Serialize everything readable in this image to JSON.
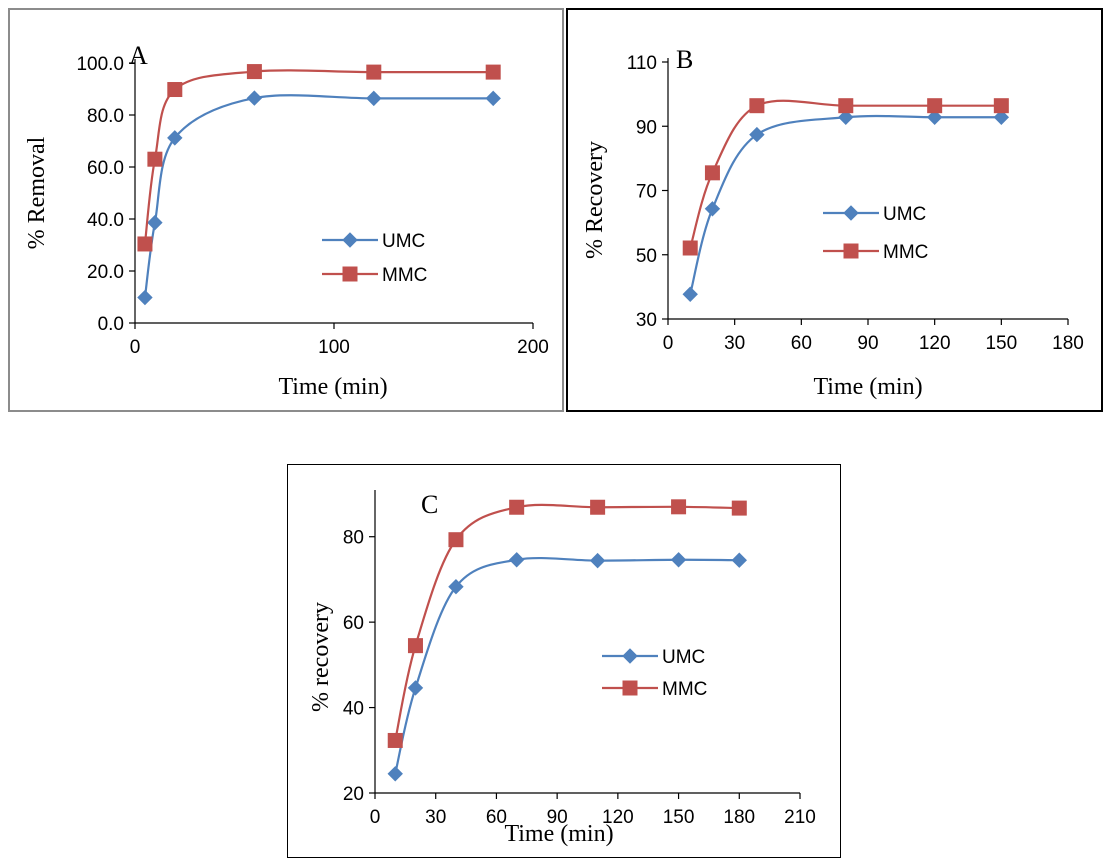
{
  "chart_data": [
    {
      "type": "line",
      "panel_label": "A",
      "xlabel": "Time (min)",
      "ylabel": "% Removal",
      "xlim": [
        0,
        200
      ],
      "ylim": [
        0,
        100
      ],
      "x_ticks": [
        0,
        100,
        200
      ],
      "y_ticks": [
        "0.0",
        "20.0",
        "40.0",
        "60.0",
        "80.0",
        "100.0"
      ],
      "x_tick_labels": [
        "0",
        "100",
        "200"
      ],
      "grid": false,
      "legend_position": "center-right",
      "series": [
        {
          "name": "UMC",
          "color": "#4f81bd",
          "marker": "diamond",
          "x": [
            5,
            10,
            20,
            60,
            120,
            180
          ],
          "y": [
            9.8,
            38.6,
            71.2,
            86.5,
            86.4,
            86.4
          ]
        },
        {
          "name": "MMC",
          "color": "#c0504d",
          "marker": "square",
          "x": [
            5,
            10,
            20,
            60,
            120,
            180
          ],
          "y": [
            30.4,
            63.0,
            89.8,
            96.7,
            96.5,
            96.5
          ]
        }
      ]
    },
    {
      "type": "line",
      "panel_label": "B",
      "xlabel": "Time (min)",
      "ylabel": "% Recovery",
      "xlim": [
        0,
        180
      ],
      "ylim": [
        30,
        110
      ],
      "x_ticks": [
        0,
        30,
        60,
        90,
        120,
        150,
        180
      ],
      "y_ticks": [
        "30",
        "50",
        "70",
        "90",
        "110"
      ],
      "x_tick_labels": [
        "0",
        "30",
        "60",
        "90",
        "120",
        "150",
        "180"
      ],
      "grid": false,
      "legend_position": "center-right",
      "series": [
        {
          "name": "UMC",
          "color": "#4f81bd",
          "marker": "diamond",
          "x": [
            10,
            20,
            40,
            80,
            120,
            150
          ],
          "y": [
            37.7,
            64.3,
            87.4,
            92.8,
            92.8,
            92.8
          ]
        },
        {
          "name": "MMC",
          "color": "#c0504d",
          "marker": "square",
          "x": [
            10,
            20,
            40,
            80,
            120,
            150
          ],
          "y": [
            52.1,
            75.5,
            96.4,
            96.4,
            96.4,
            96.4
          ]
        }
      ]
    },
    {
      "type": "line",
      "panel_label": "C",
      "xlabel": "Time (min)",
      "ylabel": "% recovery",
      "xlim": [
        0,
        210
      ],
      "ylim": [
        20,
        90
      ],
      "x_ticks": [
        0,
        30,
        60,
        90,
        120,
        150,
        180,
        210
      ],
      "y_ticks": [
        "20",
        "40",
        "60",
        "80"
      ],
      "x_tick_labels": [
        "0",
        "30",
        "60",
        "90",
        "120",
        "150",
        "180",
        "210"
      ],
      "grid": false,
      "legend_position": "center-right",
      "series": [
        {
          "name": "UMC",
          "color": "#4f81bd",
          "marker": "diamond",
          "x": [
            10,
            20,
            40,
            70,
            110,
            150,
            180
          ],
          "y": [
            24.5,
            44.6,
            68.3,
            74.6,
            74.4,
            74.6,
            74.5
          ]
        },
        {
          "name": "MMC",
          "color": "#c0504d",
          "marker": "square",
          "x": [
            10,
            20,
            40,
            70,
            110,
            150,
            180
          ],
          "y": [
            32.3,
            54.5,
            79.3,
            86.9,
            86.9,
            87.0,
            86.7
          ]
        }
      ]
    }
  ]
}
